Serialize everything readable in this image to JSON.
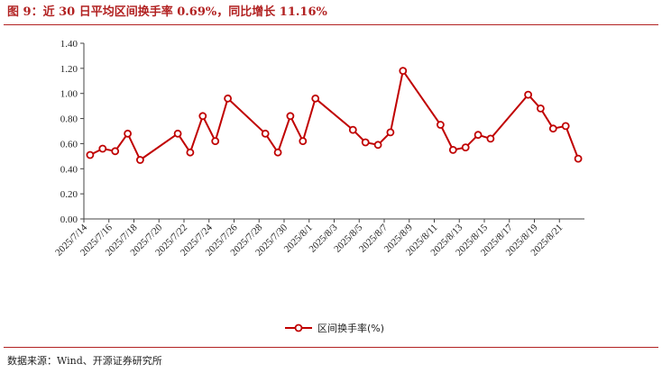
{
  "title": "图 9：近 30 日平均区间换手率 0.69%，同比增长 11.16%",
  "source": "数据来源：Wind、开源证券研究所",
  "colors": {
    "series": "#c00000",
    "accent": "#b22222",
    "axis": "#444444"
  },
  "chart_data": {
    "type": "line",
    "title": "",
    "xlabel": "",
    "ylabel": "",
    "ylim": [
      0,
      1.4
    ],
    "yticks": [
      "0.00",
      "0.20",
      "0.40",
      "0.60",
      "0.80",
      "1.00",
      "1.20",
      "1.40"
    ],
    "grid": false,
    "legend_position": "bottom",
    "x": [
      "2025/7/14",
      "2025/7/15",
      "2025/7/16",
      "2025/7/17",
      "2025/7/18",
      "2025/7/21",
      "2025/7/22",
      "2025/7/23",
      "2025/7/24",
      "2025/7/25",
      "2025/7/28",
      "2025/7/29",
      "2025/7/30",
      "2025/7/31",
      "2025/8/1",
      "2025/8/4",
      "2025/8/5",
      "2025/8/6",
      "2025/8/7",
      "2025/8/8",
      "2025/8/11",
      "2025/8/12",
      "2025/8/13",
      "2025/8/14",
      "2025/8/15",
      "2025/8/18",
      "2025/8/19",
      "2025/8/20",
      "2025/8/21",
      "2025/8/22"
    ],
    "xtick_labels": [
      "2025/7/14",
      "2025/7/16",
      "2025/7/18",
      "2025/7/20",
      "2025/7/22",
      "2025/7/24",
      "2025/7/26",
      "2025/7/28",
      "2025/7/30",
      "2025/8/1",
      "2025/8/3",
      "2025/8/5",
      "2025/8/7",
      "2025/8/9",
      "2025/8/11",
      "2025/8/13",
      "2025/8/15",
      "2025/8/17",
      "2025/8/19",
      "2025/8/21"
    ],
    "series": [
      {
        "name": "区间换手率(%)",
        "values": [
          0.51,
          0.56,
          0.54,
          0.68,
          0.47,
          0.68,
          0.53,
          0.82,
          0.62,
          0.96,
          0.68,
          0.53,
          0.82,
          0.62,
          0.96,
          0.71,
          0.61,
          0.59,
          0.69,
          1.18,
          0.75,
          0.55,
          0.57,
          0.67,
          0.64,
          0.99,
          0.88,
          0.72,
          0.74,
          0.48
        ]
      }
    ]
  }
}
